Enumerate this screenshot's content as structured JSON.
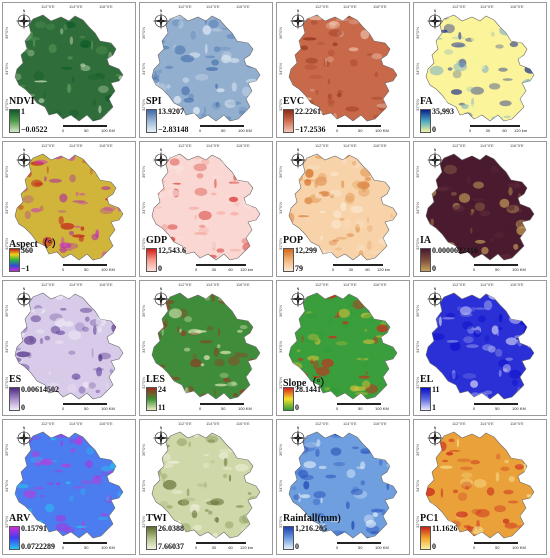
{
  "coords": {
    "top": [
      "112°0'E",
      "114°0'E",
      "116°0'E"
    ],
    "left": [
      "36°0'N",
      "34°0'N",
      "32°0'N"
    ]
  },
  "panels": [
    {
      "title": "NDVI",
      "max": "1",
      "min": "−0.0522",
      "colors": [
        "#0d5a2a",
        "#4f9a4b",
        "#d6e7c7"
      ],
      "map_fill": "#2f6e3a",
      "texture": "#5fa05e",
      "scale": [
        "0",
        "50",
        "100 KM"
      ]
    },
    {
      "title": "SPI",
      "max": "13.9207",
      "min": "−2.83148",
      "colors": [
        "#3d6aa8",
        "#9cb7d6",
        "#e9f1f8"
      ],
      "map_fill": "#93afd0",
      "texture": "#5e85b8",
      "scale": [
        "0",
        "50",
        "100 KM"
      ]
    },
    {
      "title": "EVC",
      "max": "22.2261",
      "min": "−17.2536",
      "colors": [
        "#8a2c14",
        "#cf6d4f",
        "#f2c8b5"
      ],
      "map_fill": "#c8694a",
      "texture": "#a8452a",
      "scale": [
        "0",
        "50",
        "100 KM"
      ]
    },
    {
      "title": "FA",
      "max": "35,993",
      "min": "0",
      "colors": [
        "#0b1f8a",
        "#48a9c4",
        "#f5f3a0"
      ],
      "map_fill": "#fbf49a",
      "texture": "#7fb2c8",
      "scale": [
        "0",
        "30",
        "60",
        "120 km"
      ]
    },
    {
      "title": "Aspect（°）",
      "max": "360",
      "min": "−1",
      "colors": [
        "#c21a1a",
        "#f2d21b",
        "#2bb33a",
        "#2c4fd6",
        "#c92ad0"
      ],
      "map_fill": "#d0b53a",
      "texture": "#b0389a",
      "scale": [
        "0",
        "50",
        "100 KM"
      ]
    },
    {
      "title": "GDP",
      "max": "12,543.6",
      "min": "0",
      "colors": [
        "#d11c17",
        "#f59a8c",
        "#fbe0dd"
      ],
      "map_fill": "#fad7d2",
      "texture": "#f2a59a",
      "scale": [
        "0",
        "30",
        "60",
        "120 km"
      ]
    },
    {
      "title": "POP",
      "max": "12,299",
      "min": "79",
      "colors": [
        "#d2691e",
        "#f2b579",
        "#fbe9d3"
      ],
      "map_fill": "#f8d2a8",
      "texture": "#e19a56",
      "scale": [
        "0",
        "30",
        "60",
        "120 km"
      ]
    },
    {
      "title": "IA",
      "max": "0.0000622416",
      "min": "0",
      "colors": [
        "#4a1830",
        "#7f4e3c",
        "#c8a25a"
      ],
      "map_fill": "#4a1b2e",
      "texture": "#5e2a3a",
      "scale": [
        "0",
        "50",
        "100 KM"
      ]
    },
    {
      "title": "ES",
      "max": "0.00614502",
      "min": "0",
      "colors": [
        "#4c2a82",
        "#a88cc9",
        "#f1ecf7"
      ],
      "map_fill": "#d8cbe9",
      "texture": "#6a4ea2",
      "scale": [
        "0",
        "50",
        "100 KM"
      ]
    },
    {
      "title": "LES",
      "max": "24",
      "min": "11",
      "colors": [
        "#9c2b1e",
        "#3e8f34",
        "#e9ecc2"
      ],
      "map_fill": "#3f8d3a",
      "texture": "#a43222",
      "scale": [
        "0",
        "50",
        "100 KM"
      ]
    },
    {
      "title": "Slope（°）",
      "max": "28.1441",
      "min": "0",
      "colors": [
        "#d8211c",
        "#f5e22b",
        "#2f9c37"
      ],
      "map_fill": "#3b9e3c",
      "texture": "#d6c13a",
      "scale": [
        "0",
        "50",
        "100 KM"
      ]
    },
    {
      "title": "EL",
      "max": "11",
      "min": "1",
      "colors": [
        "#0a0ec9",
        "#5c67e0",
        "#e6e8fb"
      ],
      "map_fill": "#2b2fd6",
      "texture": "#8a92eb",
      "scale": [
        "0",
        "50",
        "100 KM"
      ]
    },
    {
      "title": "ARV",
      "max": "0.15791",
      "min": "0.0722289",
      "colors": [
        "#d42bd8",
        "#3d3df0",
        "#27c6f0"
      ],
      "map_fill": "#4b7cf0",
      "texture": "#a03be0",
      "scale": [
        "0",
        "50",
        "100 KM"
      ]
    },
    {
      "title": "TWI",
      "max": "26.0388",
      "min": "7.66037",
      "colors": [
        "#5c6b2d",
        "#b2c28a",
        "#f2f2dc"
      ],
      "map_fill": "#cfd8a8",
      "texture": "#9aa86e",
      "scale": [
        "0",
        "30",
        "60",
        "120 km"
      ]
    },
    {
      "title": "Rainfall(mm)",
      "max": "1,216.205",
      "min": "0",
      "colors": [
        "#1a3fb0",
        "#6b9ae0",
        "#e6f0fb"
      ],
      "map_fill": "#6f9fdf",
      "texture": "#2d58c0",
      "scale": [
        "0",
        "50",
        "100 KM"
      ]
    },
    {
      "title": "PC1",
      "max": "11.1626",
      "min": "0",
      "colors": [
        "#c9201a",
        "#f2a52a",
        "#f9f2a3"
      ],
      "map_fill": "#eaa13a",
      "texture": "#c8321e",
      "scale": [
        "0",
        "50",
        "100 KM"
      ]
    }
  ]
}
